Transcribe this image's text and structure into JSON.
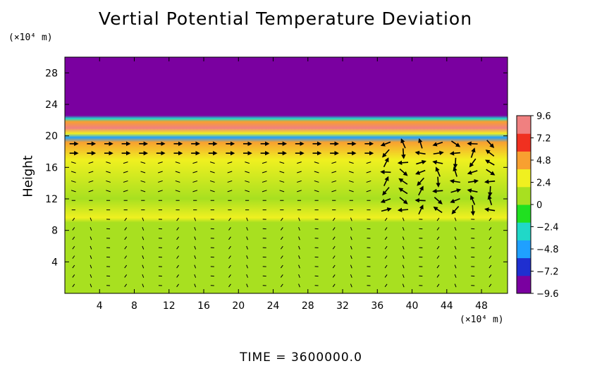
{
  "title": "Vertial Potential Temperature Deviation",
  "y_unit": "(×10⁴ m)",
  "x_unit": "(×10⁴ m)",
  "time_label": "TIME  =  3600000.0",
  "chart_data": {
    "type": "heatmap",
    "title": "Vertial Potential Temperature Deviation",
    "xlabel": "",
    "ylabel": "Height",
    "xlim": [
      0,
      51
    ],
    "ylim": [
      0,
      30
    ],
    "x_ticks": [
      "4",
      "8",
      "12",
      "16",
      "20",
      "24",
      "28",
      "32",
      "36",
      "40",
      "44",
      "48"
    ],
    "x_tick_values": [
      4,
      8,
      12,
      16,
      20,
      24,
      28,
      32,
      36,
      40,
      44,
      48
    ],
    "y_ticks": [
      "4",
      "8",
      "12",
      "16",
      "20",
      "24",
      "28"
    ],
    "y_tick_values": [
      4,
      8,
      12,
      16,
      20,
      24,
      28
    ],
    "colorbar_ticks": [
      "9.6",
      "7.2",
      "4.8",
      "2.4",
      "0",
      "−2.4",
      "−4.8",
      "−7.2",
      "−9.6"
    ],
    "colorbar_values": [
      9.6,
      7.2,
      4.8,
      2.4,
      0,
      -2.4,
      -4.8,
      -7.2,
      -9.6
    ],
    "colorbar_range": [
      -9.6,
      9.6
    ],
    "colormap": [
      "#7a00a0",
      "#1f2fd0",
      "#1fa0ff",
      "#20d8c8",
      "#20e020",
      "#a8e020",
      "#f0f020",
      "#f8a030",
      "#f03020",
      "#f08080"
    ],
    "value_profile": [
      {
        "height": 0,
        "value": 0.5
      },
      {
        "height": 9,
        "value": 0.8
      },
      {
        "height": 9.6,
        "value": 2.4
      },
      {
        "height": 12,
        "value": 1.8
      },
      {
        "height": 17,
        "value": 3.0
      },
      {
        "height": 19.2,
        "value": 4.5
      },
      {
        "height": 19.8,
        "value": -4.8
      },
      {
        "height": 20.3,
        "value": 3.0
      },
      {
        "height": 21,
        "value": 8.5
      },
      {
        "height": 21.8,
        "value": 4.0
      },
      {
        "height": 22.2,
        "value": -3.0
      },
      {
        "height": 22.6,
        "value": -9.6
      },
      {
        "height": 30,
        "value": -9.6
      }
    ],
    "vectors": "wind vectors overlaid on grid, largest near height 18–20 and x 36–50"
  }
}
